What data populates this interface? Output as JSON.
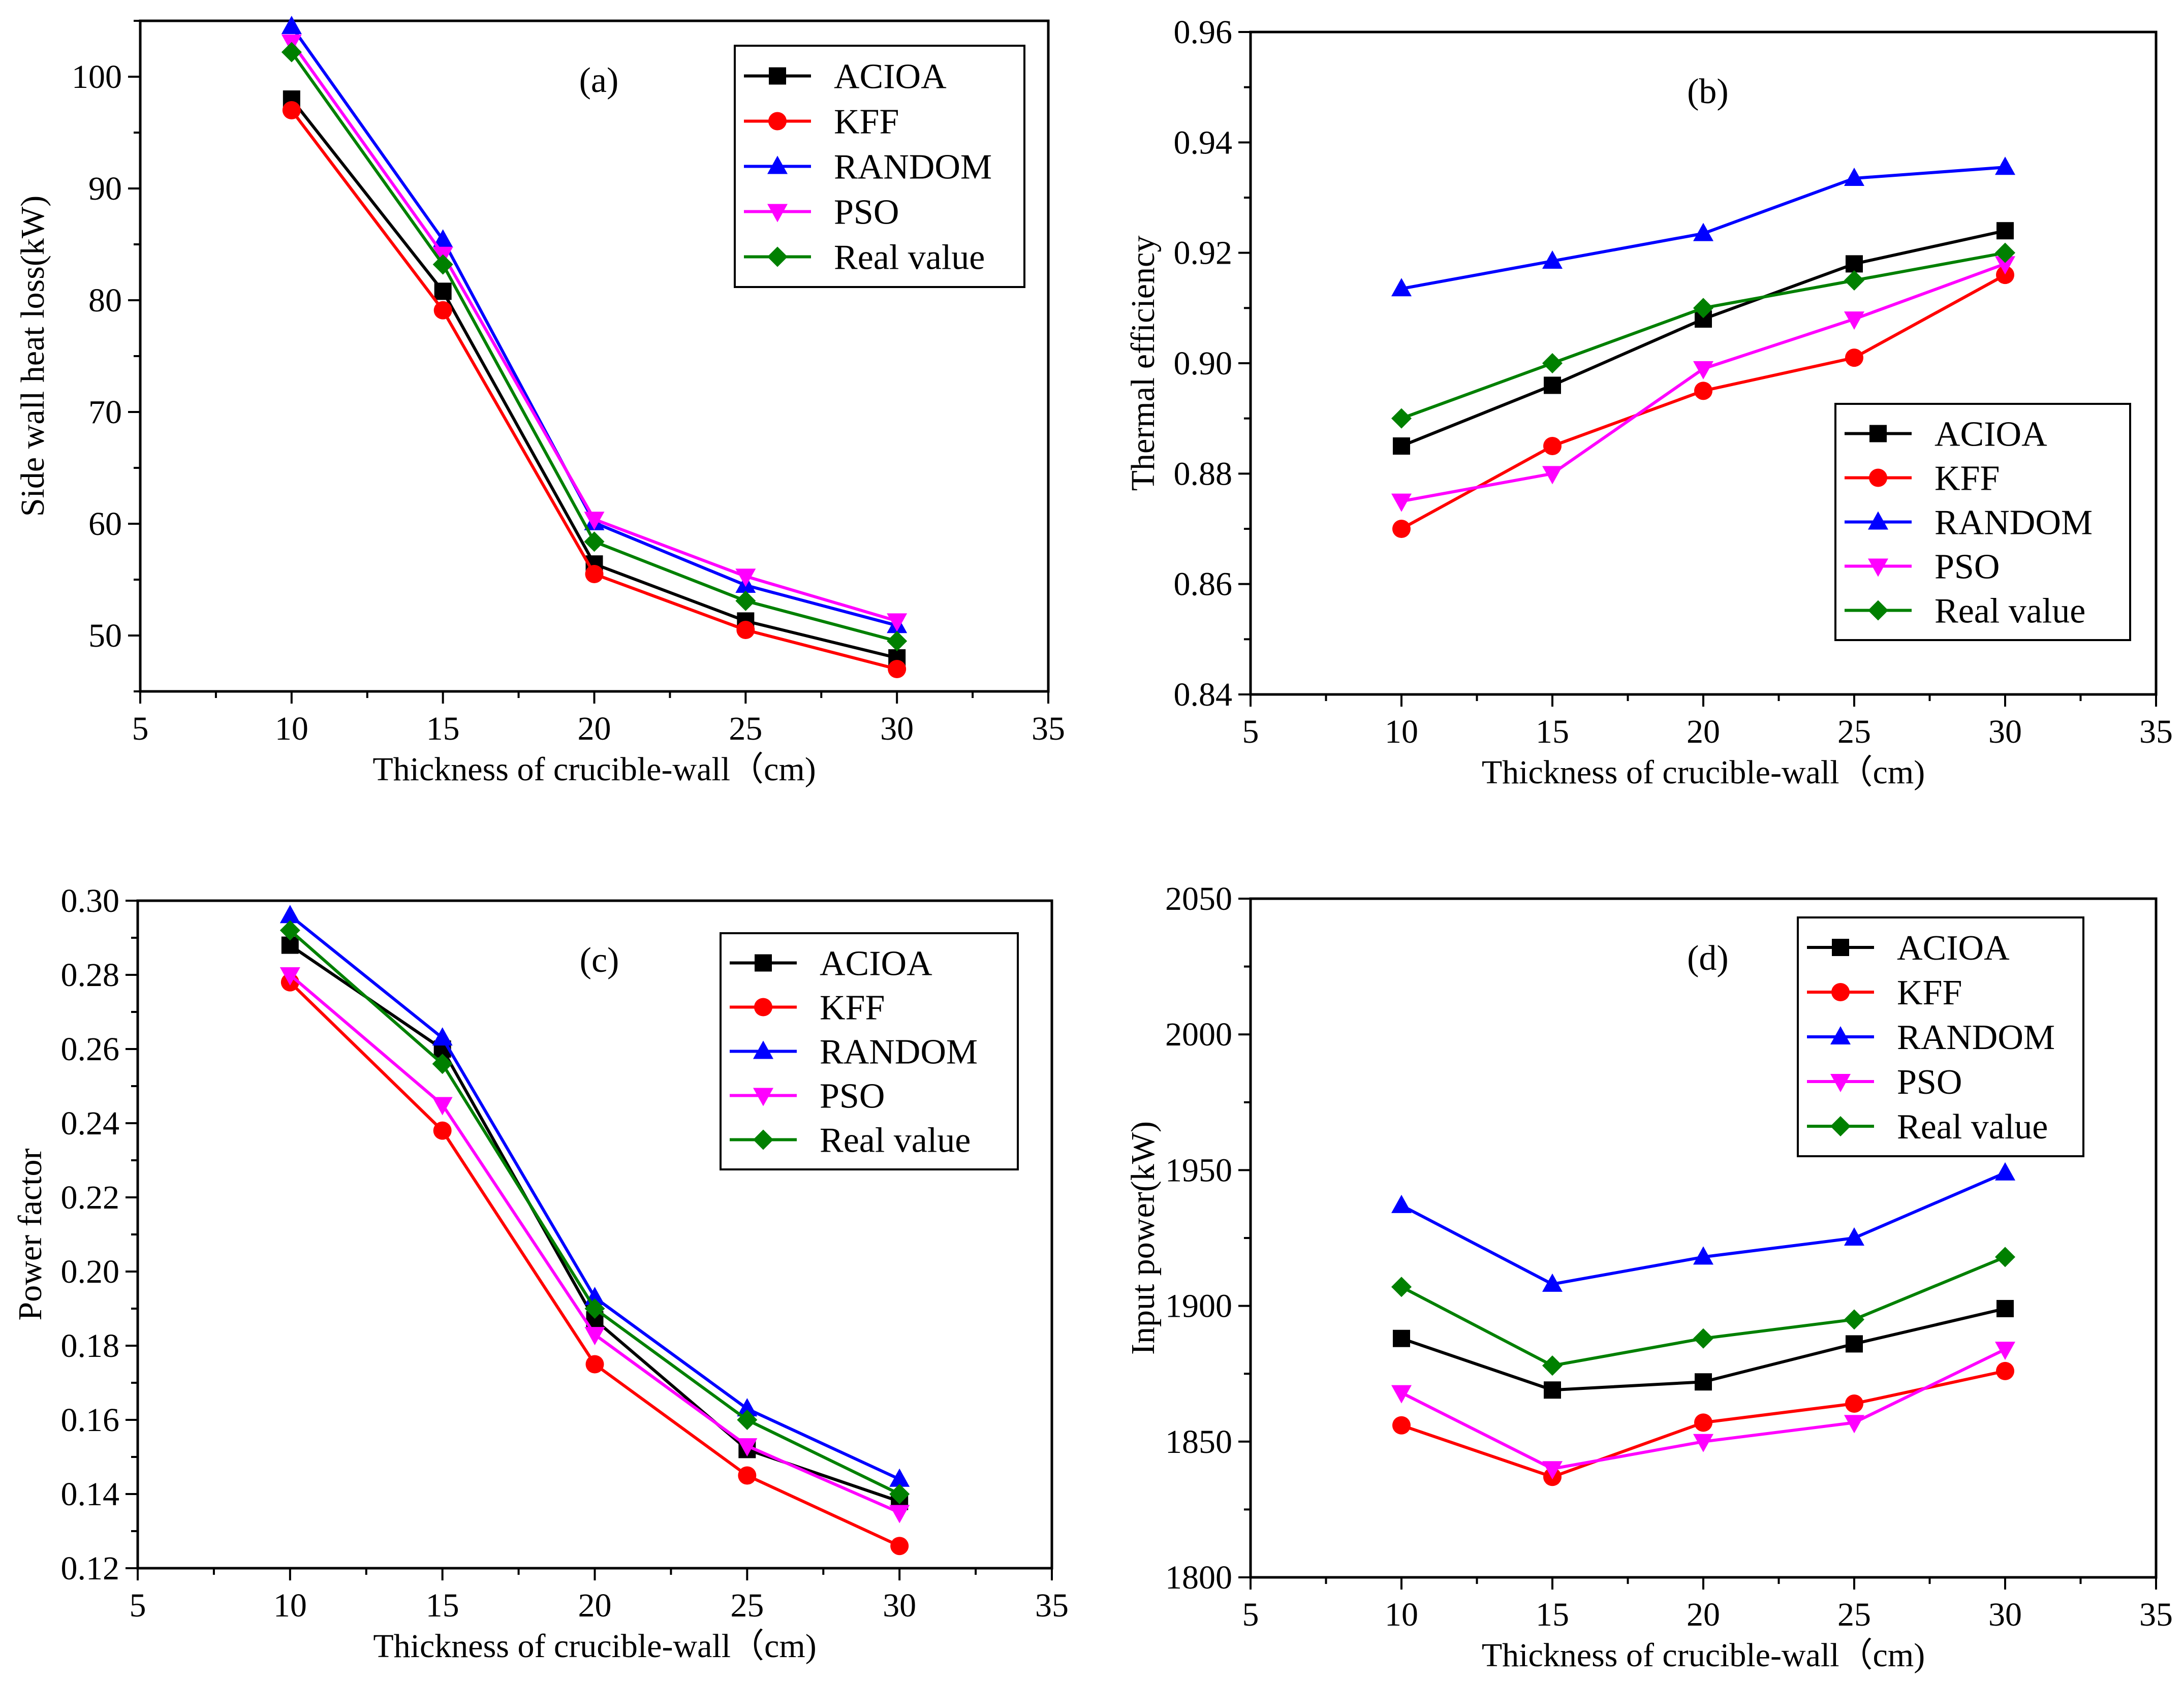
{
  "colors": {
    "ACIOA": "#000000",
    "KFF": "#ff0000",
    "RANDOM": "#0000ff",
    "PSO": "#ff00ff",
    "Real value": "#008000"
  },
  "markers": {
    "ACIOA": "square",
    "KFF": "circle",
    "RANDOM": "triangle-up",
    "PSO": "triangle-down",
    "Real value": "diamond"
  },
  "chart_data": [
    {
      "type": "line",
      "panel_label": "(a)",
      "xlabel": "Thickness of crucible-wall（cm)",
      "ylabel": "Side wall heat loss(kW)",
      "xlim": [
        5,
        35
      ],
      "ylim": [
        45,
        105
      ],
      "xticks": [
        "5",
        "10",
        "15",
        "20",
        "25",
        "30",
        "35"
      ],
      "yticks": [
        "50",
        "60",
        "70",
        "80",
        "90",
        "100"
      ],
      "legend_position": "top-right",
      "x": [
        10,
        15,
        20,
        25,
        30
      ],
      "series": [
        {
          "name": "ACIOA",
          "values": [
            98.0,
            80.8,
            56.4,
            51.3,
            48.0
          ]
        },
        {
          "name": "KFF",
          "values": [
            97.0,
            79.1,
            55.5,
            50.5,
            47.0
          ]
        },
        {
          "name": "RANDOM",
          "values": [
            104.5,
            85.4,
            60.1,
            54.5,
            50.9
          ]
        },
        {
          "name": "PSO",
          "values": [
            103.1,
            84.1,
            60.4,
            55.3,
            51.3
          ]
        },
        {
          "name": "Real value",
          "values": [
            102.2,
            83.2,
            58.4,
            53.1,
            49.5
          ]
        }
      ]
    },
    {
      "type": "line",
      "panel_label": "(b)",
      "xlabel": "Thickness of crucible-wall（cm)",
      "ylabel": "Thermal efficiency",
      "xlim": [
        5,
        35
      ],
      "ylim": [
        0.84,
        0.96
      ],
      "xticks": [
        "5",
        "10",
        "15",
        "20",
        "25",
        "30",
        "35"
      ],
      "yticks": [
        "0.84",
        "0.86",
        "0.88",
        "0.90",
        "0.92",
        "0.94",
        "0.96"
      ],
      "legend_position": "bottom-right",
      "x": [
        10,
        15,
        20,
        25,
        30
      ],
      "series": [
        {
          "name": "ACIOA",
          "values": [
            0.885,
            0.896,
            0.908,
            0.918,
            0.924
          ]
        },
        {
          "name": "KFF",
          "values": [
            0.87,
            0.885,
            0.895,
            0.901,
            0.916
          ]
        },
        {
          "name": "RANDOM",
          "values": [
            0.9135,
            0.9185,
            0.9235,
            0.9335,
            0.9355
          ]
        },
        {
          "name": "PSO",
          "values": [
            0.875,
            0.88,
            0.899,
            0.908,
            0.918
          ]
        },
        {
          "name": "Real value",
          "values": [
            0.89,
            0.9,
            0.91,
            0.915,
            0.92
          ]
        }
      ]
    },
    {
      "type": "line",
      "panel_label": "(c)",
      "xlabel": "Thickness of crucible-wall（cm)",
      "ylabel": "Power factor",
      "xlim": [
        5,
        35
      ],
      "ylim": [
        0.12,
        0.3
      ],
      "xticks": [
        "5",
        "10",
        "15",
        "20",
        "25",
        "30",
        "35"
      ],
      "yticks": [
        "0.12",
        "0.14",
        "0.16",
        "0.18",
        "0.20",
        "0.22",
        "0.24",
        "0.26",
        "0.28",
        "0.30"
      ],
      "legend_position": "top-right",
      "x": [
        10,
        15,
        20,
        25,
        30
      ],
      "series": [
        {
          "name": "ACIOA",
          "values": [
            0.288,
            0.26,
            0.187,
            0.152,
            0.138
          ]
        },
        {
          "name": "KFF",
          "values": [
            0.278,
            0.238,
            0.175,
            0.145,
            0.126
          ]
        },
        {
          "name": "RANDOM",
          "values": [
            0.296,
            0.263,
            0.193,
            0.163,
            0.144
          ]
        },
        {
          "name": "PSO",
          "values": [
            0.28,
            0.245,
            0.183,
            0.153,
            0.135
          ]
        },
        {
          "name": "Real value",
          "values": [
            0.292,
            0.256,
            0.19,
            0.16,
            0.14
          ]
        }
      ]
    },
    {
      "type": "line",
      "panel_label": "(d)",
      "xlabel": "Thickness of crucible-wall（cm)",
      "ylabel": "Input power(kW)",
      "xlim": [
        5,
        35
      ],
      "ylim": [
        1800,
        2050
      ],
      "xticks": [
        "5",
        "10",
        "15",
        "20",
        "25",
        "30",
        "35"
      ],
      "yticks": [
        "1800",
        "1850",
        "1900",
        "1950",
        "2000",
        "2050"
      ],
      "legend_position": "top-right",
      "x": [
        10,
        15,
        20,
        25,
        30
      ],
      "series": [
        {
          "name": "ACIOA",
          "values": [
            1888,
            1869,
            1872,
            1886,
            1899
          ]
        },
        {
          "name": "KFF",
          "values": [
            1856,
            1837,
            1857,
            1864,
            1876
          ]
        },
        {
          "name": "RANDOM",
          "values": [
            1937,
            1908,
            1918,
            1925,
            1949
          ]
        },
        {
          "name": "PSO",
          "values": [
            1868,
            1840,
            1850,
            1857,
            1884
          ]
        },
        {
          "name": "Real value",
          "values": [
            1907,
            1878,
            1888,
            1895,
            1918
          ]
        }
      ]
    }
  ]
}
